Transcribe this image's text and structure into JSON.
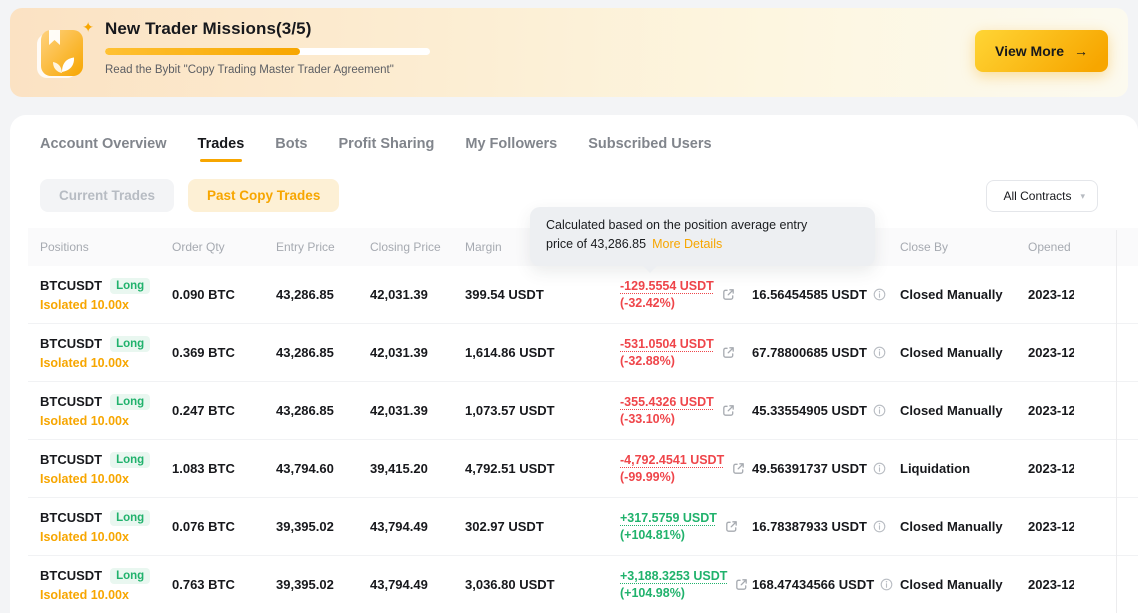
{
  "colors": {
    "accent": "#f7a600",
    "loss": "#ef454a",
    "profit": "#20b26c"
  },
  "banner": {
    "title": "New Trader Missions(3/5)",
    "subtitle": "Read the Bybit \"Copy Trading Master Trader Agreement\"",
    "progress_percent": 60,
    "view_more_label": "View More",
    "view_more_arrow": "→",
    "sparkle": "✦"
  },
  "tabs": [
    {
      "label": "Account Overview",
      "active": false
    },
    {
      "label": "Trades",
      "active": true
    },
    {
      "label": "Bots",
      "active": false
    },
    {
      "label": "Profit Sharing",
      "active": false
    },
    {
      "label": "My Followers",
      "active": false
    },
    {
      "label": "Subscribed Users",
      "active": false
    }
  ],
  "filters": {
    "current_trades": "Current Trades",
    "past_copy_trades": "Past Copy Trades",
    "contracts_dropdown": "All Contracts"
  },
  "tooltip": {
    "line1": "Calculated based on the position average entry",
    "line2": "price of 43,286.85",
    "link": "More Details"
  },
  "table": {
    "headers": [
      "Positions",
      "Order Qty",
      "Entry Price",
      "Closing Price",
      "Margin",
      "",
      "",
      "Close By",
      "Opened"
    ],
    "rows": [
      {
        "symbol": "BTCUSDT",
        "side": "Long",
        "margin_mode": "Isolated 10.00x",
        "qty": "0.090 BTC",
        "entry": "43,286.85",
        "close": "42,031.39",
        "margin": "399.54 USDT",
        "pnl": "-129.5554 USDT",
        "pnl_pct": "(-32.42%)",
        "pnl_dir": "loss",
        "cum": "16.56454585 USDT",
        "close_by": "Closed Manually",
        "opened": "2023-12"
      },
      {
        "symbol": "BTCUSDT",
        "side": "Long",
        "margin_mode": "Isolated 10.00x",
        "qty": "0.369 BTC",
        "entry": "43,286.85",
        "close": "42,031.39",
        "margin": "1,614.86 USDT",
        "pnl": "-531.0504 USDT",
        "pnl_pct": "(-32.88%)",
        "pnl_dir": "loss",
        "cum": "67.78800685 USDT",
        "close_by": "Closed Manually",
        "opened": "2023-12"
      },
      {
        "symbol": "BTCUSDT",
        "side": "Long",
        "margin_mode": "Isolated 10.00x",
        "qty": "0.247 BTC",
        "entry": "43,286.85",
        "close": "42,031.39",
        "margin": "1,073.57 USDT",
        "pnl": "-355.4326 USDT",
        "pnl_pct": "(-33.10%)",
        "pnl_dir": "loss",
        "cum": "45.33554905 USDT",
        "close_by": "Closed Manually",
        "opened": "2023-12"
      },
      {
        "symbol": "BTCUSDT",
        "side": "Long",
        "margin_mode": "Isolated 10.00x",
        "qty": "1.083 BTC",
        "entry": "43,794.60",
        "close": "39,415.20",
        "margin": "4,792.51 USDT",
        "pnl": "-4,792.4541 USDT",
        "pnl_pct": "(-99.99%)",
        "pnl_dir": "loss",
        "cum": "49.56391737 USDT",
        "close_by": "Liquidation",
        "opened": "2023-12"
      },
      {
        "symbol": "BTCUSDT",
        "side": "Long",
        "margin_mode": "Isolated 10.00x",
        "qty": "0.076 BTC",
        "entry": "39,395.02",
        "close": "43,794.49",
        "margin": "302.97 USDT",
        "pnl": "+317.5759 USDT",
        "pnl_pct": "(+104.81%)",
        "pnl_dir": "profit",
        "cum": "16.78387933 USDT",
        "close_by": "Closed Manually",
        "opened": "2023-12"
      },
      {
        "symbol": "BTCUSDT",
        "side": "Long",
        "margin_mode": "Isolated 10.00x",
        "qty": "0.763 BTC",
        "entry": "39,395.02",
        "close": "43,794.49",
        "margin": "3,036.80 USDT",
        "pnl": "+3,188.3253 USDT",
        "pnl_pct": "(+104.98%)",
        "pnl_dir": "profit",
        "cum": "168.47434566 USDT",
        "close_by": "Closed Manually",
        "opened": "2023-12"
      }
    ]
  }
}
